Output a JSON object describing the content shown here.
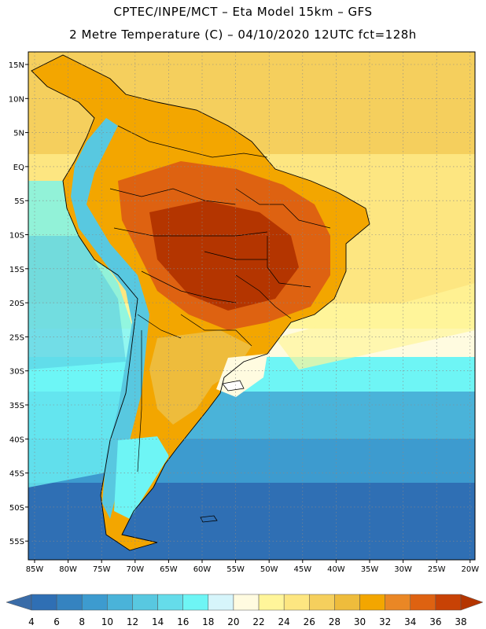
{
  "header": {
    "title_line1": "CPTEC/INPE/MCT –  Eta Model 15km – GFS",
    "title_line2": "2 Metre Temperature (C) – 04/10/2020 12UTC fct=128h"
  },
  "map": {
    "lat_ticks": [
      "15N",
      "10N",
      "5N",
      "EQ",
      "5S",
      "10S",
      "15S",
      "20S",
      "25S",
      "30S",
      "35S",
      "40S",
      "45S",
      "50S",
      "55S"
    ],
    "lon_ticks": [
      "85W",
      "80W",
      "75W",
      "70W",
      "65W",
      "60W",
      "55W",
      "50W",
      "45W",
      "40W",
      "35W",
      "30W",
      "25W",
      "20W"
    ]
  },
  "colorbar": {
    "labels": [
      "4",
      "6",
      "8",
      "10",
      "12",
      "14",
      "16",
      "18",
      "20",
      "22",
      "24",
      "26",
      "28",
      "30",
      "32",
      "34",
      "36",
      "38"
    ],
    "colors": [
      "#3a6ca8",
      "#2f6fb4",
      "#3583c0",
      "#3d9bcf",
      "#4ab3d9",
      "#58c8e0",
      "#65dcea",
      "#6ef5f5",
      "#d6f5fb",
      "#fffbe0",
      "#fff59a",
      "#fde681",
      "#f5cf5d",
      "#eebc3c",
      "#f3a600",
      "#ea8725",
      "#de6211",
      "#c84205",
      "#b43500"
    ]
  }
}
